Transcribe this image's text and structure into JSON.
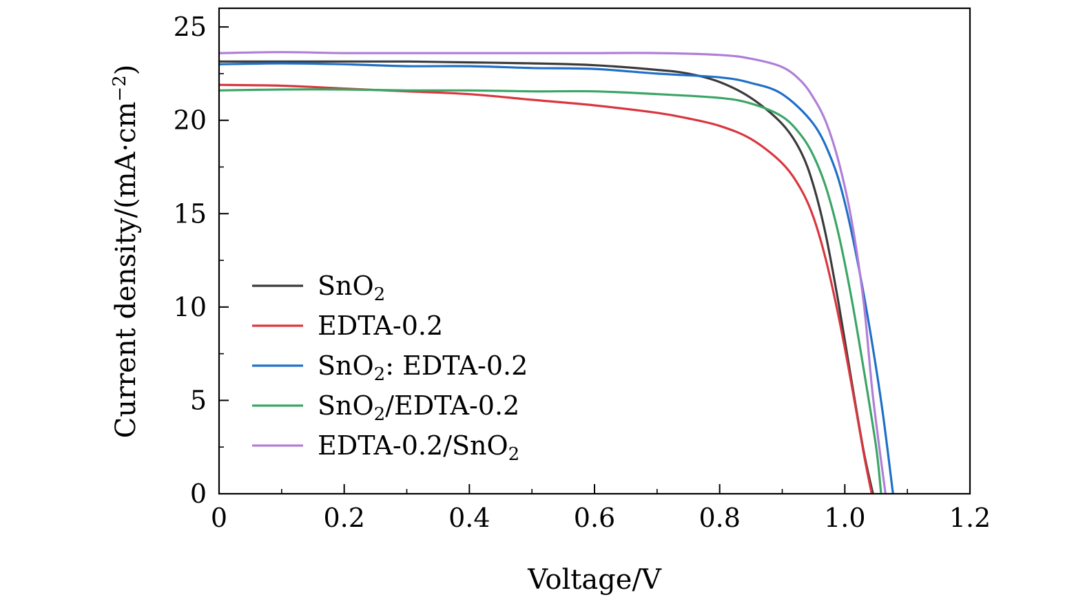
{
  "chart_data": {
    "type": "line",
    "xlabel": "Voltage/V",
    "ylabel": "Current density/(mA·cm",
    "ylabel_sup": "−2",
    "ylabel_close": ")",
    "xlim": [
      0,
      1.2
    ],
    "ylim": [
      0,
      26
    ],
    "x_ticks": [
      0,
      0.2,
      0.4,
      0.6,
      0.8,
      1.0,
      1.2
    ],
    "x_tick_labels": [
      "0",
      "0.2",
      "0.4",
      "0.6",
      "0.8",
      "1.0",
      "1.2"
    ],
    "y_ticks": [
      0,
      5,
      10,
      15,
      20,
      25
    ],
    "y_tick_labels": [
      "0",
      "5",
      "10",
      "15",
      "20",
      "25"
    ],
    "grid": false,
    "legend_position": "lower-left",
    "series": [
      {
        "name": "SnO2",
        "legend": {
          "parts": [
            "SnO",
            "2",
            ""
          ]
        },
        "color": "#3a3a3a",
        "points": [
          [
            0,
            23.15
          ],
          [
            0.1,
            23.15
          ],
          [
            0.2,
            23.15
          ],
          [
            0.3,
            23.15
          ],
          [
            0.4,
            23.1
          ],
          [
            0.5,
            23.05
          ],
          [
            0.6,
            22.95
          ],
          [
            0.7,
            22.7
          ],
          [
            0.75,
            22.5
          ],
          [
            0.8,
            22.05
          ],
          [
            0.85,
            21.2
          ],
          [
            0.9,
            19.8
          ],
          [
            0.93,
            18.3
          ],
          [
            0.95,
            16.5
          ],
          [
            0.97,
            13.8
          ],
          [
            0.99,
            10.2
          ],
          [
            1.01,
            6.2
          ],
          [
            1.03,
            2.3
          ],
          [
            1.045,
            0
          ]
        ]
      },
      {
        "name": "EDTA-0.2",
        "legend": {
          "parts": [
            "EDTA-0.2",
            "",
            ""
          ]
        },
        "color": "#d9363e",
        "points": [
          [
            0,
            21.9
          ],
          [
            0.1,
            21.85
          ],
          [
            0.2,
            21.7
          ],
          [
            0.3,
            21.55
          ],
          [
            0.4,
            21.4
          ],
          [
            0.5,
            21.1
          ],
          [
            0.6,
            20.8
          ],
          [
            0.7,
            20.4
          ],
          [
            0.75,
            20.1
          ],
          [
            0.8,
            19.7
          ],
          [
            0.85,
            19.0
          ],
          [
            0.9,
            17.7
          ],
          [
            0.93,
            16.3
          ],
          [
            0.95,
            14.8
          ],
          [
            0.97,
            12.5
          ],
          [
            0.99,
            9.5
          ],
          [
            1.01,
            6.0
          ],
          [
            1.03,
            2.2
          ],
          [
            1.043,
            0
          ]
        ]
      },
      {
        "name": "SnO2: EDTA-0.2",
        "legend": {
          "parts": [
            "SnO",
            "2",
            ": EDTA-0.2"
          ]
        },
        "color": "#1f6fc7",
        "points": [
          [
            0,
            23.0
          ],
          [
            0.1,
            23.05
          ],
          [
            0.2,
            23.0
          ],
          [
            0.3,
            22.9
          ],
          [
            0.4,
            22.9
          ],
          [
            0.5,
            22.8
          ],
          [
            0.6,
            22.75
          ],
          [
            0.7,
            22.5
          ],
          [
            0.8,
            22.3
          ],
          [
            0.85,
            22.0
          ],
          [
            0.9,
            21.4
          ],
          [
            0.95,
            19.8
          ],
          [
            0.98,
            17.8
          ],
          [
            1.0,
            15.6
          ],
          [
            1.02,
            12.5
          ],
          [
            1.04,
            8.8
          ],
          [
            1.06,
            4.5
          ],
          [
            1.077,
            0
          ]
        ]
      },
      {
        "name": "SnO2/EDTA-0.2",
        "legend": {
          "parts": [
            "SnO",
            "2",
            "/EDTA-0.2"
          ]
        },
        "color": "#3aa565",
        "points": [
          [
            0,
            21.6
          ],
          [
            0.1,
            21.65
          ],
          [
            0.2,
            21.65
          ],
          [
            0.3,
            21.6
          ],
          [
            0.4,
            21.6
          ],
          [
            0.5,
            21.55
          ],
          [
            0.6,
            21.55
          ],
          [
            0.7,
            21.4
          ],
          [
            0.8,
            21.2
          ],
          [
            0.85,
            20.9
          ],
          [
            0.9,
            20.2
          ],
          [
            0.93,
            19.2
          ],
          [
            0.95,
            18.1
          ],
          [
            0.97,
            16.4
          ],
          [
            0.99,
            13.9
          ],
          [
            1.01,
            10.6
          ],
          [
            1.03,
            6.7
          ],
          [
            1.05,
            2.5
          ],
          [
            1.058,
            0
          ]
        ]
      },
      {
        "name": "EDTA-0.2/SnO2",
        "legend": {
          "parts": [
            "EDTA-0.2/SnO",
            "2",
            ""
          ]
        },
        "color": "#b07ed6",
        "points": [
          [
            0,
            23.6
          ],
          [
            0.1,
            23.65
          ],
          [
            0.2,
            23.6
          ],
          [
            0.3,
            23.6
          ],
          [
            0.4,
            23.6
          ],
          [
            0.5,
            23.6
          ],
          [
            0.6,
            23.6
          ],
          [
            0.7,
            23.6
          ],
          [
            0.8,
            23.5
          ],
          [
            0.85,
            23.3
          ],
          [
            0.9,
            22.85
          ],
          [
            0.93,
            22.1
          ],
          [
            0.95,
            21.2
          ],
          [
            0.97,
            19.9
          ],
          [
            0.99,
            17.8
          ],
          [
            1.01,
            14.8
          ],
          [
            1.03,
            10.3
          ],
          [
            1.045,
            5.2
          ],
          [
            1.065,
            0
          ]
        ]
      }
    ]
  }
}
